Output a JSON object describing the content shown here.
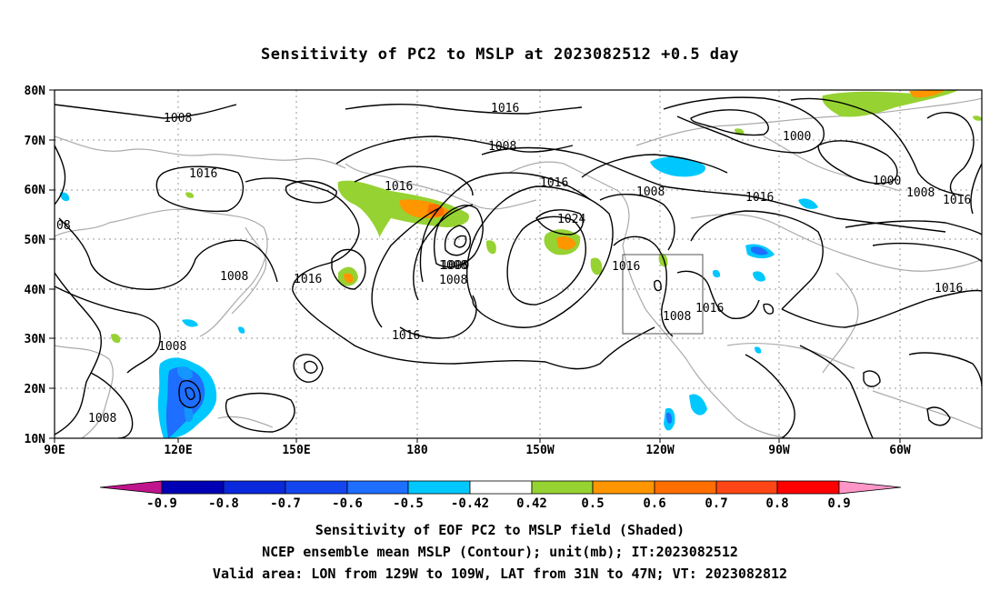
{
  "title": "Sensitivity of PC2 to MSLP at 2023082512 +0.5 day",
  "map": {
    "lat_ticks": [
      "80N",
      "70N",
      "60N",
      "50N",
      "40N",
      "30N",
      "20N",
      "10N"
    ],
    "lon_ticks": [
      "90E",
      "120E",
      "150E",
      "180",
      "150W",
      "120W",
      "90W",
      "60W"
    ],
    "grid": true,
    "contour_color": "#000000",
    "coast_color": "#aaaaaa",
    "box_color": "#555555"
  },
  "contour_labels": [
    "1008",
    "1016",
    "1016",
    "1008",
    "1016",
    "1016",
    "1008",
    "1016",
    "1024",
    "1008",
    "1016",
    "1000",
    "1008",
    "1008",
    "1016",
    "1016",
    "1008",
    "1016",
    "1008",
    "1000",
    "1000",
    "1008",
    "1016",
    "1016",
    "08",
    "1008"
  ],
  "colorbar": {
    "labels": [
      "-0.9",
      "-0.8",
      "-0.7",
      "-0.6",
      "-0.5",
      "-0.42",
      "0.42",
      "0.5",
      "0.6",
      "0.7",
      "0.8",
      "0.9"
    ],
    "colors": [
      "#c0148c",
      "#0000b4",
      "#0a28dc",
      "#1446f0",
      "#1e6eff",
      "#1496ff",
      "#00c8ff",
      "#ffffff",
      "#96d232",
      "#ff9600",
      "#ff6e00",
      "#ff4614",
      "#ff0000",
      "#ff96c8"
    ]
  },
  "caption": {
    "line1": "Sensitivity of EOF PC2 to MSLP field (Shaded)",
    "line2": "NCEP ensemble mean MSLP (Contour); unit(mb); IT:2023082512",
    "line3": "Valid area: LON from 129W to 109W, LAT from 31N to 47N; VT: 2023082812"
  }
}
